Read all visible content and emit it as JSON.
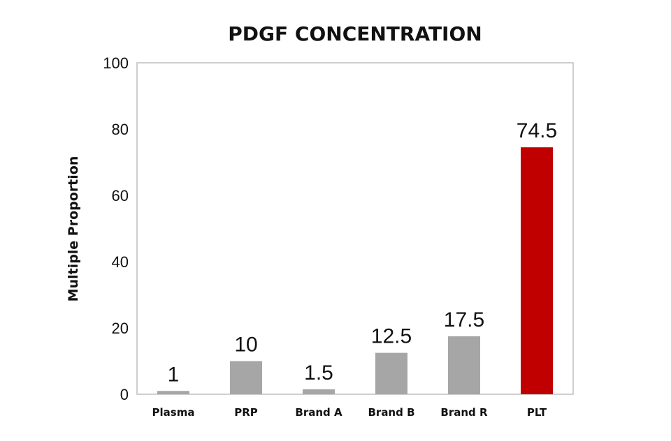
{
  "chart_data": {
    "type": "bar",
    "title": "PDGF CONCENTRATION",
    "xlabel": "",
    "ylabel": "Multiple Proportion",
    "ylim": [
      0,
      100
    ],
    "yticks": [
      0,
      20,
      40,
      60,
      80,
      100
    ],
    "categories": [
      "Plasma",
      "PRP",
      "Brand A",
      "Brand B",
      "Brand R",
      "PLT"
    ],
    "values": [
      1,
      10,
      1.5,
      12.5,
      17.5,
      74.5
    ],
    "data_labels": [
      "1",
      "10",
      "1.5",
      "12.5",
      "17.5",
      "74.5"
    ],
    "colors": [
      "#a6a6a6",
      "#a6a6a6",
      "#a6a6a6",
      "#a6a6a6",
      "#a6a6a6",
      "#c00000"
    ],
    "grid": false,
    "legend": "none"
  }
}
